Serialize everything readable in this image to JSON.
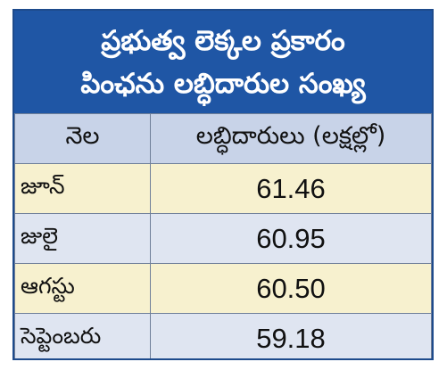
{
  "header": {
    "line1": "ప్రభుత్వ లెక్కల ప్రకారం",
    "line2": "పింఛను లబ్ధిదారుల సంఖ్య"
  },
  "table": {
    "col_month": "నెల",
    "col_value": "లబ్ధిదారులు (లక్షల్లో)",
    "rows": [
      {
        "month": "జూన్",
        "value": "61.46"
      },
      {
        "month": "జులై",
        "value": "60.95"
      },
      {
        "month": "ఆగస్టు",
        "value": "60.50"
      },
      {
        "month": "సెప్టెంబరు",
        "value": "59.18"
      }
    ]
  },
  "colors": {
    "header_bg": "#1f56a5",
    "column_header_bg": "#c8d3e8",
    "row_odd_bg": "#f7f1cf",
    "row_even_bg": "#dfe5f1"
  }
}
